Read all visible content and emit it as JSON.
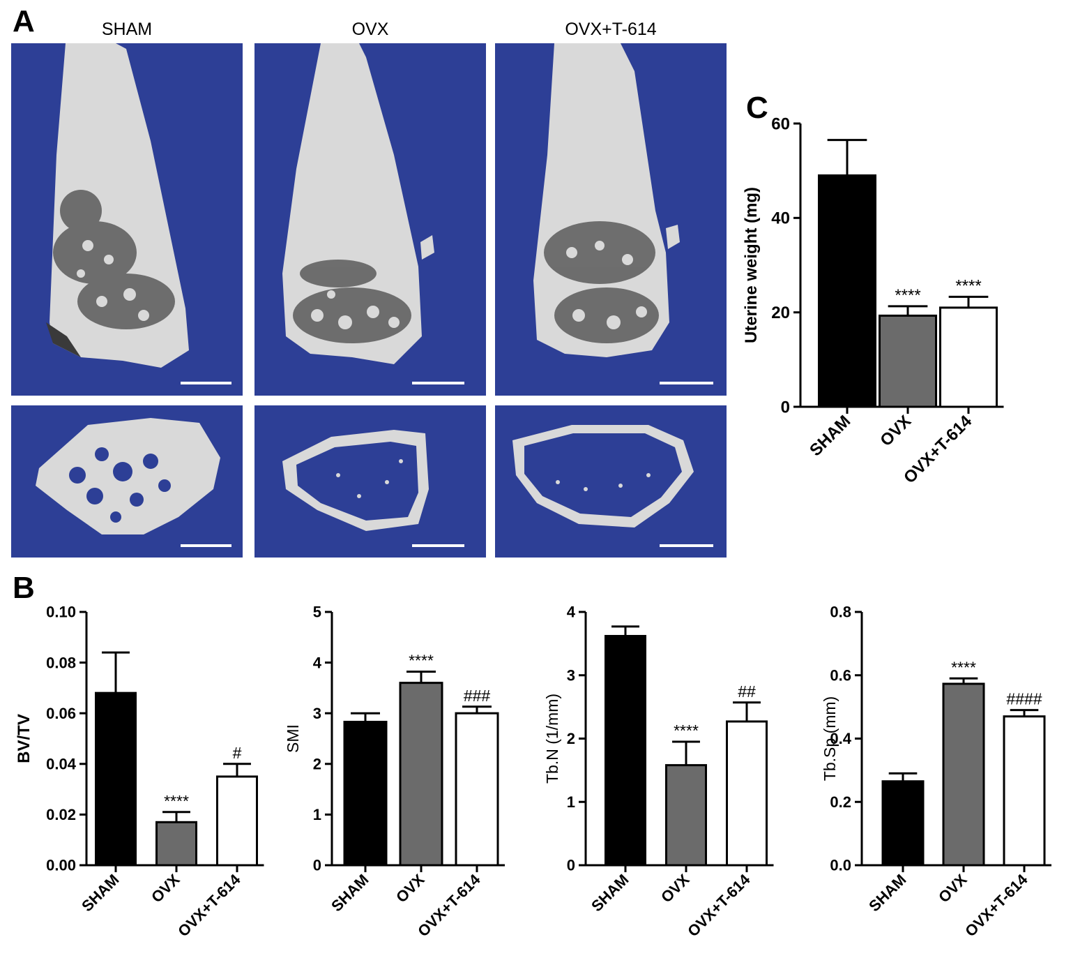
{
  "figure": {
    "panel_letters": {
      "a": "A",
      "b": "B",
      "c": "C"
    },
    "group_titles": [
      "SHAM",
      "OVX",
      "OVX+T-614"
    ],
    "colors": {
      "ct_background": "#2d3f96",
      "bone": "#d9d9d9",
      "sham_bar": "#000000",
      "ovx_bar": "#6b6b6b",
      "t614_bar": "#ffffff"
    }
  },
  "chart_data": [
    {
      "id": "C",
      "type": "bar",
      "categories": [
        "SHAM",
        "OVX",
        "OVX+T-614"
      ],
      "values": [
        49,
        19.3,
        21
      ],
      "errors": [
        7.5,
        2,
        2.3
      ],
      "annotations": [
        "",
        "****",
        "****"
      ],
      "title": "",
      "xlabel": "",
      "ylabel": "Uterine weight (mg)",
      "ylim": [
        0,
        60
      ],
      "yticks": [
        0,
        20,
        40,
        60
      ],
      "ytick_labels": [
        "0",
        "20",
        "40",
        "60"
      ],
      "grid": false
    },
    {
      "id": "B1",
      "type": "bar",
      "categories": [
        "SHAM",
        "OVX",
        "OVX+T-614"
      ],
      "values": [
        0.068,
        0.017,
        0.035
      ],
      "errors": [
        0.016,
        0.004,
        0.005
      ],
      "annotations": [
        "",
        "****",
        "#"
      ],
      "title": "",
      "xlabel": "",
      "ylabel": "BV/TV",
      "ylim": [
        0,
        0.1
      ],
      "yticks": [
        0,
        0.02,
        0.04,
        0.06,
        0.08,
        0.1
      ],
      "ytick_labels": [
        "0.00",
        "0.02",
        "0.04",
        "0.06",
        "0.08",
        "0.10"
      ],
      "grid": false
    },
    {
      "id": "B2",
      "type": "bar",
      "categories": [
        "SHAM",
        "OVX",
        "OVX+T-614"
      ],
      "values": [
        2.83,
        3.6,
        3.0
      ],
      "errors": [
        0.17,
        0.22,
        0.13
      ],
      "annotations": [
        "",
        "****",
        "###"
      ],
      "title": "",
      "xlabel": "",
      "ylabel": "SMI",
      "ylim": [
        0,
        5
      ],
      "yticks": [
        0,
        1,
        2,
        3,
        4,
        5
      ],
      "ytick_labels": [
        "0",
        "1",
        "2",
        "3",
        "4",
        "5"
      ],
      "grid": false
    },
    {
      "id": "B3",
      "type": "bar",
      "categories": [
        "SHAM",
        "OVX",
        "OVX+T-614"
      ],
      "values": [
        3.62,
        1.58,
        2.27
      ],
      "errors": [
        0.15,
        0.37,
        0.3
      ],
      "annotations": [
        "",
        "****",
        "##"
      ],
      "title": "",
      "xlabel": "",
      "ylabel": "Tb.N (1/mm)",
      "ylim": [
        0,
        4
      ],
      "yticks": [
        0,
        1,
        2,
        3,
        4
      ],
      "ytick_labels": [
        "0",
        "1",
        "2",
        "3",
        "4"
      ],
      "grid": false
    },
    {
      "id": "B4",
      "type": "bar",
      "categories": [
        "SHAM",
        "OVX",
        "OVX+T-614"
      ],
      "values": [
        0.265,
        0.573,
        0.47
      ],
      "errors": [
        0.025,
        0.017,
        0.02
      ],
      "annotations": [
        "",
        "****",
        "####"
      ],
      "title": "",
      "xlabel": "",
      "ylabel": "Tb.Sp (mm)",
      "ylim": [
        0,
        0.8
      ],
      "yticks": [
        0,
        0.2,
        0.4,
        0.6,
        0.8
      ],
      "ytick_labels": [
        "0.0",
        "0.2",
        "0.4",
        "0.6",
        "0.8"
      ],
      "grid": false
    }
  ]
}
